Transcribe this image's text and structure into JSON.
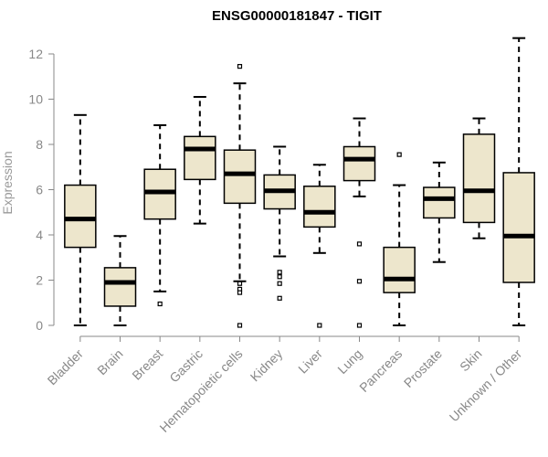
{
  "chart_data": {
    "type": "boxplot",
    "title": "ENSG00000181847 - TIGIT",
    "ylabel": "Expression",
    "xlabel": "",
    "ylim": [
      0,
      12.6
    ],
    "yticks": [
      0,
      2,
      4,
      6,
      8,
      10,
      12
    ],
    "box_color": "#ede6cc",
    "categories": [
      "Bladder",
      "Brain",
      "Breast",
      "Gastric",
      "Hematopoietic cells",
      "Kidney",
      "Liver",
      "Lung",
      "Pancreas",
      "Prostate",
      "Skin",
      "Unknown / Other"
    ],
    "boxes": [
      {
        "q1": 3.45,
        "median": 4.7,
        "q3": 6.2,
        "whisker_low": 0.0,
        "whisker_high": 9.3,
        "outliers": []
      },
      {
        "q1": 0.85,
        "median": 1.9,
        "q3": 2.55,
        "whisker_low": 0.0,
        "whisker_high": 3.95,
        "outliers": []
      },
      {
        "q1": 4.7,
        "median": 5.9,
        "q3": 6.9,
        "whisker_low": 1.5,
        "whisker_high": 8.85,
        "outliers": [
          0.95
        ]
      },
      {
        "q1": 6.45,
        "median": 7.8,
        "q3": 8.35,
        "whisker_low": 4.5,
        "whisker_high": 10.1,
        "outliers": []
      },
      {
        "q1": 5.4,
        "median": 6.7,
        "q3": 7.75,
        "whisker_low": 1.95,
        "whisker_high": 10.7,
        "outliers": [
          11.45,
          1.85,
          1.6,
          1.45,
          0.0
        ]
      },
      {
        "q1": 5.15,
        "median": 5.95,
        "q3": 6.65,
        "whisker_low": 3.05,
        "whisker_high": 7.9,
        "outliers": [
          2.35,
          2.15,
          1.85,
          1.2
        ]
      },
      {
        "q1": 4.35,
        "median": 5.0,
        "q3": 6.15,
        "whisker_low": 3.2,
        "whisker_high": 7.1,
        "outliers": [
          0.0
        ]
      },
      {
        "q1": 6.4,
        "median": 7.35,
        "q3": 7.9,
        "whisker_low": 5.7,
        "whisker_high": 9.15,
        "outliers": [
          3.6,
          1.95,
          0.0
        ]
      },
      {
        "q1": 1.45,
        "median": 2.05,
        "q3": 3.45,
        "whisker_low": 0.0,
        "whisker_high": 6.2,
        "outliers": [
          7.55
        ]
      },
      {
        "q1": 4.75,
        "median": 5.6,
        "q3": 6.1,
        "whisker_low": 2.8,
        "whisker_high": 7.2,
        "outliers": []
      },
      {
        "q1": 4.55,
        "median": 5.95,
        "q3": 8.45,
        "whisker_low": 3.85,
        "whisker_high": 9.15,
        "outliers": []
      },
      {
        "q1": 1.9,
        "median": 3.95,
        "q3": 6.75,
        "whisker_low": 0.0,
        "whisker_high": 12.7,
        "outliers": []
      }
    ]
  }
}
